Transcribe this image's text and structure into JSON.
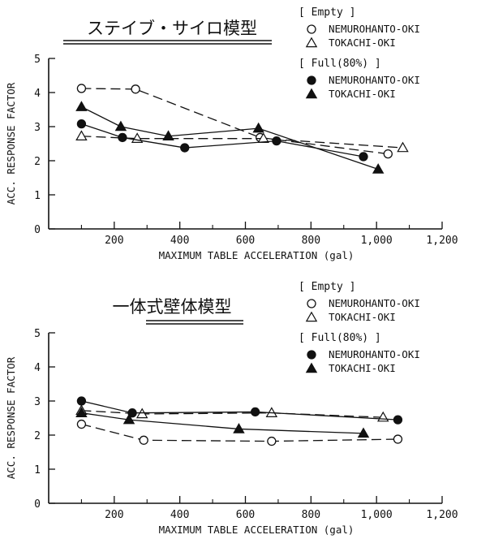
{
  "chart_data": [
    {
      "type": "scatter",
      "title": "ステイブ・サイロ模型",
      "xlabel": "MAXIMUM TABLE ACCELERATION (gal)",
      "ylabel": "ACC. RESPONSE FACTOR",
      "xlim": [
        0,
        1200
      ],
      "ylim": [
        0,
        5
      ],
      "xticks": [
        "200",
        "400",
        "600",
        "800",
        "1,000",
        "1,200"
      ],
      "yticks": [
        "0",
        "1",
        "2",
        "3",
        "4",
        "5"
      ],
      "grid": false,
      "legend_position": "top-right",
      "legend_groups": [
        {
          "label": "[ Empty ]",
          "entries": [
            {
              "marker": "open-circle",
              "label": "NEMUROHANTO-OKI"
            },
            {
              "marker": "open-triangle",
              "label": "TOKACHI-OKI"
            }
          ]
        },
        {
          "label": "[ Full(80%) ]",
          "entries": [
            {
              "marker": "filled-circle",
              "label": "NEMUROHANTO-OKI"
            },
            {
              "marker": "filled-triangle",
              "label": "TOKACHI-OKI"
            }
          ]
        }
      ],
      "series": [
        {
          "marker": "open-circle",
          "line": "dashed",
          "x": [
            100,
            265,
            645,
            1035
          ],
          "y": [
            4.12,
            4.1,
            2.68,
            2.2
          ]
        },
        {
          "marker": "open-triangle",
          "line": "dashed",
          "x": [
            100,
            270,
            655,
            1080
          ],
          "y": [
            2.72,
            2.65,
            2.65,
            2.38
          ]
        },
        {
          "marker": "filled-circle",
          "line": "solid",
          "x": [
            100,
            225,
            415,
            695,
            960
          ],
          "y": [
            3.08,
            2.68,
            2.38,
            2.58,
            2.12
          ]
        },
        {
          "marker": "filled-triangle",
          "line": "solid",
          "x": [
            100,
            220,
            365,
            640,
            1005
          ],
          "y": [
            3.58,
            3.0,
            2.72,
            2.95,
            1.75
          ]
        }
      ]
    },
    {
      "type": "scatter",
      "title": "一体式壁体模型",
      "xlabel": "MAXIMUM TABLE ACCELERATION (gal)",
      "ylabel": "ACC. RESPONSE FACTOR",
      "xlim": [
        0,
        1200
      ],
      "ylim": [
        0,
        5
      ],
      "xticks": [
        "200",
        "400",
        "600",
        "800",
        "1,000",
        "1,200"
      ],
      "yticks": [
        "0",
        "1",
        "2",
        "3",
        "4",
        "5"
      ],
      "grid": false,
      "legend_position": "top-right",
      "legend_groups": [
        {
          "label": "[ Empty ]",
          "entries": [
            {
              "marker": "open-circle",
              "label": "NEMUROHANTO-OKI"
            },
            {
              "marker": "open-triangle",
              "label": "TOKACHI-OKI"
            }
          ]
        },
        {
          "label": "[ Full(80%) ]",
          "entries": [
            {
              "marker": "filled-circle",
              "label": "NEMUROHANTO-OKI"
            },
            {
              "marker": "filled-triangle",
              "label": "TOKACHI-OKI"
            }
          ]
        }
      ],
      "series": [
        {
          "marker": "open-circle",
          "line": "dashed",
          "x": [
            100,
            290,
            680,
            1065
          ],
          "y": [
            2.32,
            1.85,
            1.82,
            1.88
          ]
        },
        {
          "marker": "open-triangle",
          "line": "dashed",
          "x": [
            100,
            285,
            680,
            1020
          ],
          "y": [
            2.72,
            2.62,
            2.65,
            2.52
          ]
        },
        {
          "marker": "filled-circle",
          "line": "solid",
          "x": [
            100,
            255,
            630,
            1065
          ],
          "y": [
            3.0,
            2.65,
            2.68,
            2.45
          ]
        },
        {
          "marker": "filled-triangle",
          "line": "solid",
          "x": [
            100,
            245,
            580,
            960
          ],
          "y": [
            2.65,
            2.45,
            2.18,
            2.05
          ]
        }
      ]
    }
  ]
}
